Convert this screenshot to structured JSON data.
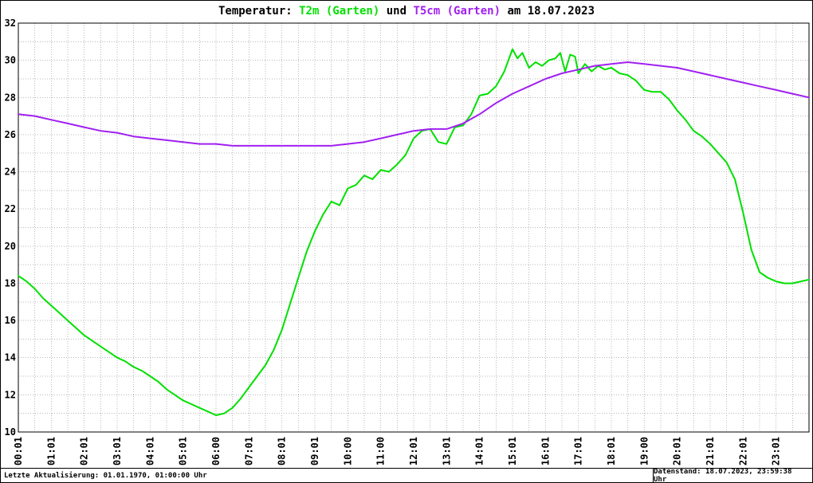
{
  "title": {
    "segments": [
      {
        "text": "Temperatur: ",
        "color": "#000000"
      },
      {
        "text": "T2m (Garten)",
        "color": "#00e000"
      },
      {
        "text": " und ",
        "color": "#000000"
      },
      {
        "text": "T5cm (Garten)",
        "color": "#a020f0"
      },
      {
        "text": " am 18.07.2023",
        "color": "#000000"
      }
    ]
  },
  "footer": {
    "left": "Letzte Aktualisierung: 01.01.1970, 01:00:00 Uhr",
    "right": "Datenstand: 18.07.2023, 23:59:38 Uhr"
  },
  "chart_data": {
    "type": "line",
    "title": "Temperatur: T2m (Garten) und T5cm (Garten) am 18.07.2023",
    "date": "18.07.2023",
    "x_axis": {
      "unit": "hours",
      "min": 0,
      "max": 24,
      "tick_labels": [
        "00:01",
        "01:01",
        "02:01",
        "03:01",
        "04:01",
        "05:01",
        "06:00",
        "07:01",
        "08:01",
        "09:01",
        "10:00",
        "11:00",
        "12:01",
        "13:01",
        "14:01",
        "15:01",
        "16:01",
        "17:01",
        "18:01",
        "19:00",
        "20:01",
        "21:01",
        "22:01",
        "23:01"
      ]
    },
    "y_axis": {
      "min": 10,
      "max": 32,
      "tick_values": [
        10,
        12,
        14,
        16,
        18,
        20,
        22,
        24,
        26,
        28,
        30,
        32
      ]
    },
    "grid": {
      "horizontal_step": 1,
      "vertical_step_hours": 0.5,
      "style": "dotted",
      "color": "#b8b8b8"
    },
    "legend_position": "in-title",
    "series": [
      {
        "name": "T2m (Garten)",
        "color": "#00e000",
        "points": [
          [
            0,
            18.4
          ],
          [
            0.25,
            18.1
          ],
          [
            0.5,
            17.7
          ],
          [
            0.75,
            17.2
          ],
          [
            1,
            16.8
          ],
          [
            1.25,
            16.4
          ],
          [
            1.5,
            16.0
          ],
          [
            1.75,
            15.6
          ],
          [
            2,
            15.2
          ],
          [
            2.25,
            14.9
          ],
          [
            2.5,
            14.6
          ],
          [
            2.75,
            14.3
          ],
          [
            3,
            14.0
          ],
          [
            3.25,
            13.8
          ],
          [
            3.5,
            13.5
          ],
          [
            3.75,
            13.3
          ],
          [
            4,
            13.0
          ],
          [
            4.25,
            12.7
          ],
          [
            4.5,
            12.3
          ],
          [
            4.75,
            12.0
          ],
          [
            5,
            11.7
          ],
          [
            5.25,
            11.5
          ],
          [
            5.5,
            11.3
          ],
          [
            5.75,
            11.1
          ],
          [
            6,
            10.9
          ],
          [
            6.25,
            11.0
          ],
          [
            6.5,
            11.3
          ],
          [
            6.75,
            11.8
          ],
          [
            7,
            12.4
          ],
          [
            7.25,
            13.0
          ],
          [
            7.5,
            13.6
          ],
          [
            7.75,
            14.4
          ],
          [
            8,
            15.5
          ],
          [
            8.25,
            16.9
          ],
          [
            8.5,
            18.3
          ],
          [
            8.75,
            19.7
          ],
          [
            9,
            20.8
          ],
          [
            9.25,
            21.7
          ],
          [
            9.5,
            22.4
          ],
          [
            9.75,
            22.2
          ],
          [
            10,
            23.1
          ],
          [
            10.25,
            23.3
          ],
          [
            10.5,
            23.8
          ],
          [
            10.75,
            23.6
          ],
          [
            11,
            24.1
          ],
          [
            11.25,
            24.0
          ],
          [
            11.5,
            24.4
          ],
          [
            11.75,
            24.9
          ],
          [
            12,
            25.8
          ],
          [
            12.25,
            26.2
          ],
          [
            12.5,
            26.3
          ],
          [
            12.75,
            25.6
          ],
          [
            13,
            25.5
          ],
          [
            13.25,
            26.4
          ],
          [
            13.5,
            26.5
          ],
          [
            13.75,
            27.1
          ],
          [
            14,
            28.1
          ],
          [
            14.25,
            28.2
          ],
          [
            14.5,
            28.6
          ],
          [
            14.75,
            29.4
          ],
          [
            15,
            30.6
          ],
          [
            15.15,
            30.1
          ],
          [
            15.3,
            30.4
          ],
          [
            15.5,
            29.6
          ],
          [
            15.7,
            29.9
          ],
          [
            15.9,
            29.7
          ],
          [
            16.1,
            30.0
          ],
          [
            16.3,
            30.1
          ],
          [
            16.45,
            30.4
          ],
          [
            16.6,
            29.4
          ],
          [
            16.75,
            30.3
          ],
          [
            16.9,
            30.2
          ],
          [
            17,
            29.3
          ],
          [
            17.2,
            29.8
          ],
          [
            17.4,
            29.4
          ],
          [
            17.6,
            29.7
          ],
          [
            17.8,
            29.5
          ],
          [
            18,
            29.6
          ],
          [
            18.25,
            29.3
          ],
          [
            18.5,
            29.2
          ],
          [
            18.75,
            28.9
          ],
          [
            19,
            28.4
          ],
          [
            19.25,
            28.3
          ],
          [
            19.5,
            28.3
          ],
          [
            19.75,
            27.9
          ],
          [
            20,
            27.3
          ],
          [
            20.25,
            26.8
          ],
          [
            20.5,
            26.2
          ],
          [
            20.75,
            25.9
          ],
          [
            21,
            25.5
          ],
          [
            21.25,
            25.0
          ],
          [
            21.5,
            24.5
          ],
          [
            21.75,
            23.6
          ],
          [
            22,
            21.8
          ],
          [
            22.25,
            19.8
          ],
          [
            22.5,
            18.6
          ],
          [
            22.75,
            18.3
          ],
          [
            23,
            18.1
          ],
          [
            23.25,
            18.0
          ],
          [
            23.5,
            18.0
          ],
          [
            23.75,
            18.1
          ],
          [
            24,
            18.2
          ]
        ]
      },
      {
        "name": "T5cm (Garten)",
        "color": "#a020f0",
        "points": [
          [
            0,
            27.1
          ],
          [
            0.5,
            27.0
          ],
          [
            1,
            26.8
          ],
          [
            1.5,
            26.6
          ],
          [
            2,
            26.4
          ],
          [
            2.5,
            26.2
          ],
          [
            3,
            26.1
          ],
          [
            3.5,
            25.9
          ],
          [
            4,
            25.8
          ],
          [
            4.5,
            25.7
          ],
          [
            5,
            25.6
          ],
          [
            5.5,
            25.5
          ],
          [
            6,
            25.5
          ],
          [
            6.5,
            25.4
          ],
          [
            7,
            25.4
          ],
          [
            7.5,
            25.4
          ],
          [
            8,
            25.4
          ],
          [
            8.5,
            25.4
          ],
          [
            9,
            25.4
          ],
          [
            9.5,
            25.4
          ],
          [
            10,
            25.5
          ],
          [
            10.5,
            25.6
          ],
          [
            11,
            25.8
          ],
          [
            11.5,
            26.0
          ],
          [
            12,
            26.2
          ],
          [
            12.5,
            26.3
          ],
          [
            13,
            26.3
          ],
          [
            13.5,
            26.6
          ],
          [
            14,
            27.1
          ],
          [
            14.5,
            27.7
          ],
          [
            15,
            28.2
          ],
          [
            15.5,
            28.6
          ],
          [
            16,
            29.0
          ],
          [
            16.5,
            29.3
          ],
          [
            17,
            29.5
          ],
          [
            17.5,
            29.7
          ],
          [
            18,
            29.8
          ],
          [
            18.5,
            29.9
          ],
          [
            19,
            29.8
          ],
          [
            19.5,
            29.7
          ],
          [
            20,
            29.6
          ],
          [
            20.5,
            29.4
          ],
          [
            21,
            29.2
          ],
          [
            21.5,
            29.0
          ],
          [
            22,
            28.8
          ],
          [
            22.5,
            28.6
          ],
          [
            23,
            28.4
          ],
          [
            23.5,
            28.2
          ],
          [
            24,
            28.0
          ]
        ]
      }
    ]
  }
}
